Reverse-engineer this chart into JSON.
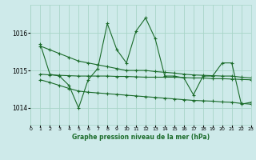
{
  "bg_color": "#ceeaea",
  "grid_color": "#a8d5c8",
  "line_color": "#1a6b2a",
  "title": "Graphe pression niveau de la mer (hPa)",
  "xlim": [
    0,
    23
  ],
  "ylim": [
    1013.55,
    1016.75
  ],
  "yticks": [
    1014,
    1015,
    1016
  ],
  "xticks": [
    0,
    1,
    2,
    3,
    4,
    5,
    6,
    7,
    8,
    9,
    10,
    11,
    12,
    13,
    14,
    15,
    16,
    17,
    18,
    19,
    20,
    21,
    22,
    23
  ],
  "series": [
    {
      "x": [
        1,
        2,
        3,
        4,
        5,
        6,
        7,
        8,
        9,
        10,
        11,
        12,
        13,
        14,
        15,
        16,
        17,
        18,
        19,
        20,
        21,
        22,
        23
      ],
      "y": [
        1015.7,
        1014.9,
        1014.85,
        1014.6,
        1014.0,
        1014.75,
        1015.05,
        1016.25,
        1015.55,
        1015.2,
        1016.05,
        1016.4,
        1015.85,
        1014.85,
        1014.85,
        1014.8,
        1014.35,
        1014.85,
        1014.85,
        1015.2,
        1015.2,
        1014.1,
        1014.15
      ]
    },
    {
      "x": [
        1,
        2,
        3,
        4,
        5,
        6,
        7,
        8,
        9,
        10,
        11,
        12,
        13,
        14,
        15,
        16,
        17,
        18,
        19,
        20,
        21,
        22,
        23
      ],
      "y": [
        1015.65,
        1015.55,
        1015.45,
        1015.35,
        1015.25,
        1015.2,
        1015.15,
        1015.1,
        1015.05,
        1015.0,
        1015.0,
        1015.0,
        1014.97,
        1014.95,
        1014.93,
        1014.9,
        1014.88,
        1014.87,
        1014.86,
        1014.85,
        1014.85,
        1014.82,
        1014.8
      ]
    },
    {
      "x": [
        1,
        2,
        3,
        4,
        5,
        6,
        7,
        8,
        9,
        10,
        11,
        12,
        13,
        14,
        15,
        16,
        17,
        18,
        19,
        20,
        21,
        22,
        23
      ],
      "y": [
        1014.9,
        1014.88,
        1014.87,
        1014.86,
        1014.85,
        1014.85,
        1014.85,
        1014.85,
        1014.84,
        1014.84,
        1014.83,
        1014.82,
        1014.82,
        1014.82,
        1014.82,
        1014.81,
        1014.8,
        1014.8,
        1014.78,
        1014.78,
        1014.77,
        1014.76,
        1014.75
      ]
    },
    {
      "x": [
        1,
        2,
        3,
        4,
        5,
        6,
        7,
        8,
        9,
        10,
        11,
        12,
        13,
        14,
        15,
        16,
        17,
        18,
        19,
        20,
        21,
        22,
        23
      ],
      "y": [
        1014.75,
        1014.68,
        1014.6,
        1014.52,
        1014.45,
        1014.42,
        1014.4,
        1014.38,
        1014.36,
        1014.34,
        1014.32,
        1014.3,
        1014.28,
        1014.26,
        1014.24,
        1014.22,
        1014.2,
        1014.19,
        1014.18,
        1014.16,
        1014.15,
        1014.12,
        1014.1
      ]
    }
  ]
}
